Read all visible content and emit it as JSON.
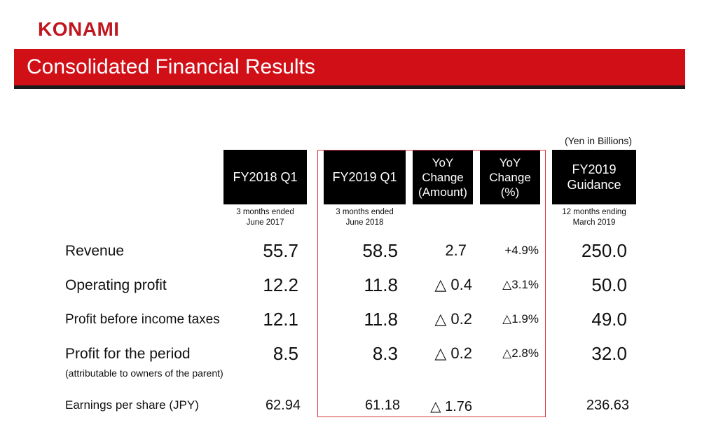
{
  "header": {
    "logo": "KONAMI",
    "title": "Consolidated Financial Results",
    "unit_note": "(Yen in Billions)"
  },
  "columns": [
    {
      "label": "FY2018 Q1",
      "sub": "3 months ended\nJune 2017"
    },
    {
      "label": "FY2019 Q1",
      "sub": "3 months ended\nJune 2018"
    },
    {
      "label": "YoY\nChange\n(Amount)",
      "sub": ""
    },
    {
      "label": "YoY\nChange\n(%)",
      "sub": ""
    },
    {
      "label": "FY2019\nGuidance",
      "sub": "12 months ending\nMarch 2019"
    }
  ],
  "rows": [
    {
      "label": "Revenue",
      "values": [
        "55.7",
        "58.5",
        "2.7",
        "+4.9%",
        "250.0"
      ]
    },
    {
      "label": "Operating profit",
      "values": [
        "12.2",
        "11.8",
        "△ 0.4",
        "△3.1%",
        "50.0"
      ]
    },
    {
      "label": "Profit before income taxes",
      "values": [
        "12.1",
        "11.8",
        "△ 0.2",
        "△1.9%",
        "49.0"
      ]
    },
    {
      "label": "Profit for the period",
      "note": "(attributable to owners of the parent)",
      "values": [
        "8.5",
        "8.3",
        "△ 0.2",
        "△2.8%",
        "32.0"
      ]
    },
    {
      "label": "Earnings per share (JPY)",
      "values": [
        "62.94",
        "61.18",
        "△ 1.76",
        "",
        "236.63"
      ]
    }
  ]
}
